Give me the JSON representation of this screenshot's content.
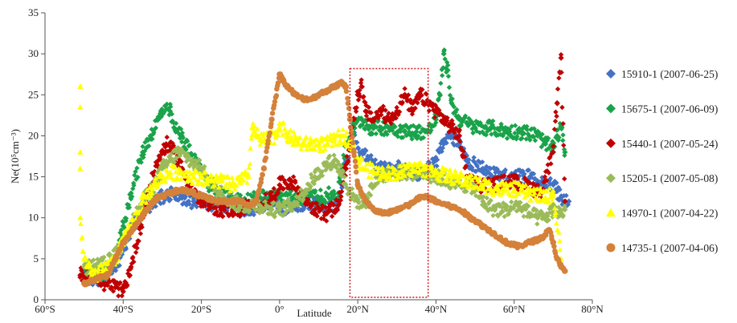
{
  "chart_data": {
    "type": "scatter",
    "title": "",
    "xlabel": "Latitude",
    "ylabel": "Ne(10⁵cm⁻³)",
    "xlim": [
      -60,
      80
    ],
    "ylim": [
      0,
      35
    ],
    "x_ticks": [
      -60,
      -40,
      -20,
      0,
      20,
      40,
      60,
      80
    ],
    "x_tick_labels": [
      "60°S",
      "40°S",
      "20°S",
      "0°",
      "20°N",
      "40°N",
      "60°N",
      "80°N"
    ],
    "y_ticks": [
      0,
      5,
      10,
      15,
      20,
      25,
      30,
      35
    ],
    "y_tick_labels": [
      "0",
      "5",
      "10",
      "15",
      "20",
      "25",
      "30",
      "35"
    ],
    "grid": false,
    "legend_position": "right",
    "highlight_box": {
      "x": [
        18,
        38
      ],
      "y": [
        0.3,
        28.2
      ],
      "color": "#d62728",
      "style": "dotted"
    },
    "series": [
      {
        "name": "15910-1 (2007-06-25)",
        "marker": "diamond",
        "color": "#4472c4",
        "x": [
          -50,
          -47,
          -44,
          -42,
          -40,
          -38,
          -35,
          -32,
          -30,
          -28,
          -25,
          -22,
          -20,
          -18,
          -15,
          -12,
          -10,
          -8,
          -5,
          -2,
          0,
          3,
          6,
          9,
          12,
          15,
          17,
          19,
          21,
          23,
          25,
          28,
          31,
          34,
          37,
          40,
          42,
          44,
          46,
          48,
          52,
          56,
          60,
          64,
          68,
          70,
          72,
          74
        ],
        "y": [
          3,
          2.5,
          3,
          4,
          6,
          8.5,
          11,
          12,
          12.5,
          13,
          12.5,
          12,
          12,
          11.5,
          11.5,
          12,
          11,
          11,
          11.5,
          12,
          11,
          11.5,
          11.5,
          12,
          11,
          12,
          17,
          20,
          18,
          17,
          16,
          16,
          16,
          15.5,
          15.5,
          17,
          19,
          20,
          19,
          17,
          16,
          15,
          15,
          15,
          14,
          14,
          12.5,
          12
        ]
      },
      {
        "name": "15675-1 (2007-06-09)",
        "marker": "diamond",
        "color": "#1aa34a",
        "x": [
          -50,
          -47,
          -44,
          -42,
          -40,
          -38,
          -35,
          -33,
          -31,
          -30,
          -28,
          -27,
          -25,
          -22,
          -20,
          -18,
          -15,
          -12,
          -10,
          -8,
          -5,
          0,
          5,
          10,
          15,
          17,
          19,
          21,
          23,
          26,
          29,
          32,
          35,
          38,
          40,
          41,
          42,
          43,
          44,
          46,
          48,
          50,
          54,
          58,
          62,
          66,
          68,
          70,
          71,
          72,
          73
        ],
        "y": [
          3,
          3,
          3.5,
          5,
          9,
          13,
          18,
          20,
          22,
          23,
          23,
          21,
          20,
          17,
          16,
          14,
          13,
          12.5,
          12,
          12,
          12.5,
          12.5,
          12.5,
          12.5,
          13,
          19,
          21,
          22,
          21,
          21,
          21,
          20.5,
          20.5,
          20.5,
          22,
          25,
          30,
          28,
          24,
          22,
          21.5,
          21,
          21,
          20.5,
          20.5,
          20,
          19,
          18.5,
          20,
          21,
          18
        ]
      },
      {
        "name": "15440-1 (2007-05-24)",
        "marker": "diamond",
        "color": "#c00000",
        "x": [
          -51,
          -48,
          -45,
          -42,
          -40,
          -38,
          -35,
          -33,
          -31,
          -29,
          -27,
          -25,
          -22,
          -20,
          -18,
          -15,
          -12,
          -10,
          -8,
          -5,
          -2,
          0,
          3,
          6,
          9,
          12,
          15,
          17,
          19,
          20,
          21,
          22,
          24,
          26,
          28,
          30,
          32,
          34,
          36,
          38,
          40,
          42,
          44,
          46,
          48,
          51,
          55,
          59,
          63,
          67,
          70,
          71,
          72,
          73
        ],
        "y": [
          3,
          3.5,
          2,
          1.5,
          1,
          4,
          10,
          14,
          17,
          19,
          18,
          16,
          13,
          12,
          11.5,
          11,
          11,
          11,
          11.5,
          11.5,
          12.5,
          14,
          14.5,
          12.5,
          11,
          10.5,
          11.5,
          16,
          22,
          25,
          26,
          23,
          22,
          23,
          22,
          23,
          25,
          23,
          25,
          24,
          23,
          22,
          21,
          20,
          15,
          14,
          14,
          14.5,
          14,
          13,
          18,
          24,
          29.5,
          12
        ]
      },
      {
        "name": "15205-1 (2007-05-08)",
        "marker": "diamond",
        "color": "#9bbb59",
        "x": [
          -50,
          -47,
          -44,
          -41,
          -38,
          -35,
          -32,
          -30,
          -28,
          -26,
          -24,
          -22,
          -20,
          -18,
          -15,
          -12,
          -10,
          -8,
          -5,
          -2,
          0,
          3,
          6,
          9,
          12,
          14,
          16,
          18,
          20,
          22,
          25,
          28,
          31,
          34,
          37,
          40,
          43,
          46,
          49,
          52,
          55,
          58,
          61,
          64,
          66,
          68,
          70,
          72,
          73
        ],
        "y": [
          4,
          4,
          4.5,
          6,
          9,
          12,
          14,
          16,
          17,
          18,
          17.5,
          16.5,
          16,
          14.5,
          13,
          12,
          11.5,
          11.5,
          11.5,
          11,
          11,
          11.5,
          13,
          15,
          16.5,
          17,
          15.5,
          13,
          12,
          12,
          15,
          15.5,
          15.5,
          15.5,
          15.5,
          15,
          14.5,
          14,
          14,
          12,
          11,
          11,
          11.5,
          10.5,
          10,
          10,
          11,
          10.5,
          11
        ]
      },
      {
        "name": "14970-1 (2007-04-22)",
        "marker": "triangle",
        "color": "#ffff00",
        "x": [
          -51,
          -51,
          -51,
          -51,
          -51,
          -50,
          -49,
          -48,
          -45,
          -42,
          -40,
          -38,
          -35,
          -32,
          -30,
          -28,
          -25,
          -22,
          -20,
          -18,
          -15,
          -12,
          -10,
          -8,
          -7,
          -5,
          -3,
          -1,
          0,
          2,
          4,
          6,
          8,
          10,
          12,
          14,
          16,
          18,
          20,
          22,
          25,
          28,
          31,
          34,
          37,
          40,
          44,
          48,
          52,
          56,
          60,
          64,
          68,
          70,
          72
        ],
        "y": [
          26,
          23.5,
          18,
          16,
          10,
          5,
          4,
          3,
          3.5,
          5,
          7,
          9,
          12,
          14,
          15,
          15.5,
          15.5,
          15,
          15,
          14.5,
          14.5,
          14,
          14.5,
          15,
          21,
          19.5,
          19.5,
          20,
          21.5,
          20,
          19.5,
          19,
          19,
          19,
          19,
          19.5,
          20,
          19.5,
          17,
          16,
          15.5,
          15.5,
          15.5,
          16,
          16,
          15.5,
          15,
          14.5,
          14,
          13.5,
          13.5,
          13,
          12.5,
          13,
          5
        ]
      },
      {
        "name": "14735-1 (2007-04-06)",
        "marker": "circle",
        "color": "#d4813a",
        "x": [
          -50,
          -47,
          -44,
          -42,
          -40,
          -37,
          -34,
          -31,
          -28,
          -25,
          -22,
          -19,
          -16,
          -13,
          -10,
          -8,
          -6,
          -4,
          -2,
          0,
          2,
          4,
          6,
          8,
          10,
          12,
          14,
          16,
          17,
          18,
          19,
          20,
          22,
          24,
          27,
          30,
          33,
          36,
          38,
          40,
          43,
          46,
          49,
          52,
          55,
          58,
          61,
          64,
          67,
          69,
          70,
          71,
          72,
          73
        ],
        "y": [
          2,
          2.5,
          3,
          5,
          7,
          9,
          11,
          12.5,
          13,
          13.5,
          13,
          12.5,
          12,
          12,
          12,
          11.5,
          12,
          16,
          22,
          27.5,
          26,
          25,
          24.5,
          24.5,
          25,
          25.5,
          26,
          26.5,
          26,
          22,
          18,
          14,
          12,
          11,
          10.5,
          11,
          11.5,
          12.5,
          12.5,
          12,
          11.5,
          11,
          10,
          9,
          8,
          7,
          6.5,
          7,
          7.5,
          8.5,
          7,
          5,
          4,
          3.5
        ]
      }
    ]
  }
}
